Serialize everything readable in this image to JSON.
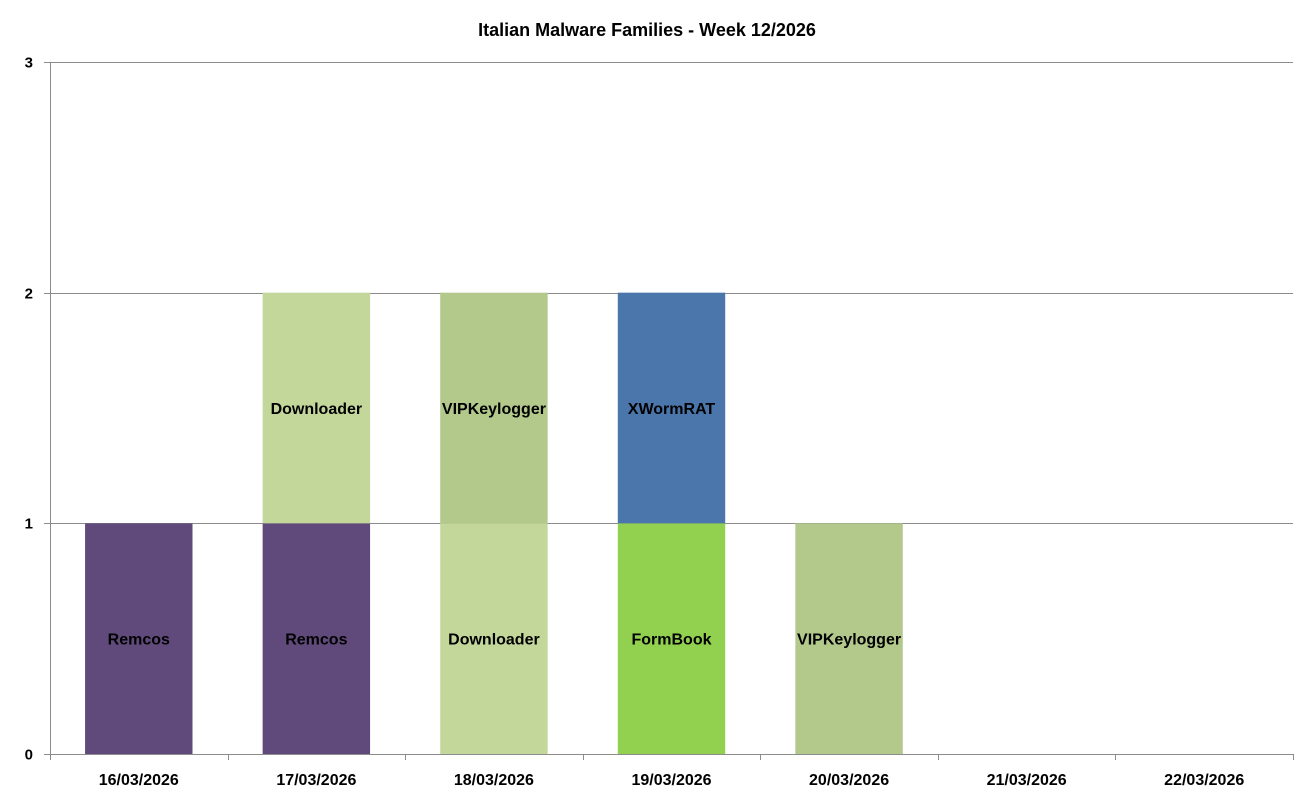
{
  "chart_data": {
    "type": "bar",
    "stacked": true,
    "title": "Italian Malware Families - Week 12/2026",
    "xlabel": "",
    "ylabel": "",
    "ylim": [
      0,
      3
    ],
    "yticks": [
      0,
      1,
      2,
      3
    ],
    "grid": true,
    "legend": "none",
    "categories": [
      "16/03/2026",
      "17/03/2026",
      "18/03/2026",
      "19/03/2026",
      "20/03/2026",
      "21/03/2026",
      "22/03/2026"
    ],
    "colors": {
      "Remcos": "#604a7b",
      "Downloader": "#c4d79b",
      "VIPKeylogger": "#b3c98c",
      "XWormRAT": "#4a76ab",
      "FormBook": "#92d050"
    },
    "stacks": [
      [
        {
          "label": "Remcos",
          "value": 1
        }
      ],
      [
        {
          "label": "Remcos",
          "value": 1
        },
        {
          "label": "Downloader",
          "value": 1
        }
      ],
      [
        {
          "label": "Downloader",
          "value": 1
        },
        {
          "label": "VIPKeylogger",
          "value": 1
        }
      ],
      [
        {
          "label": "FormBook",
          "value": 1
        },
        {
          "label": "XWormRAT",
          "value": 1
        }
      ],
      [
        {
          "label": "VIPKeylogger",
          "value": 1
        }
      ],
      [],
      []
    ]
  }
}
